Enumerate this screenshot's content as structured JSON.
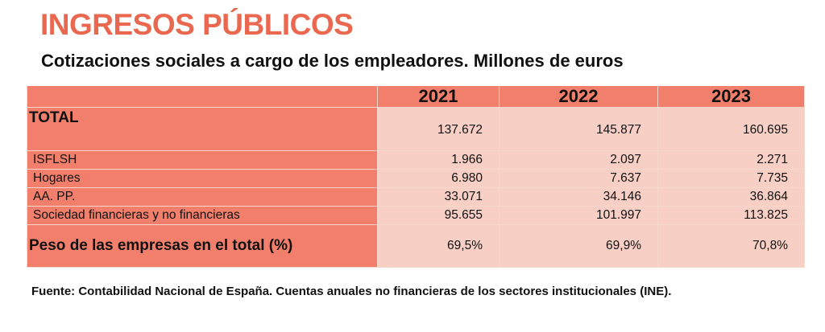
{
  "title": "INGRESOS PÚBLICOS",
  "subtitle": "Cotizaciones sociales a cargo de los empleadores. Millones de euros",
  "colors": {
    "title": "#e9684f",
    "header_fill": "#f17f6b",
    "cell_fill": "#f8cfc4"
  },
  "table": {
    "years": [
      "2021",
      "2022",
      "2023"
    ],
    "total": {
      "label": "TOTAL",
      "values": [
        "137.672",
        "145.877",
        "160.695"
      ]
    },
    "rows": [
      {
        "label": "ISFLSH",
        "values": [
          "1.966",
          "2.097",
          "2.271"
        ]
      },
      {
        "label": "Hogares",
        "values": [
          "6.980",
          "7.637",
          "7.735"
        ]
      },
      {
        "label": "AA. PP.",
        "values": [
          "33.071",
          "34.146",
          "36.864"
        ]
      },
      {
        "label": "Sociedad financieras y no financieras",
        "values": [
          "95.655",
          "101.997",
          "113.825"
        ]
      }
    ],
    "peso": {
      "label": "Peso de las empresas en el total (%)",
      "values": [
        "69,5%",
        "69,9%",
        "70,8%"
      ]
    }
  },
  "source": "Fuente: Contabilidad Nacional de España. Cuentas anuales no financieras de los sectores institucionales (INE)."
}
